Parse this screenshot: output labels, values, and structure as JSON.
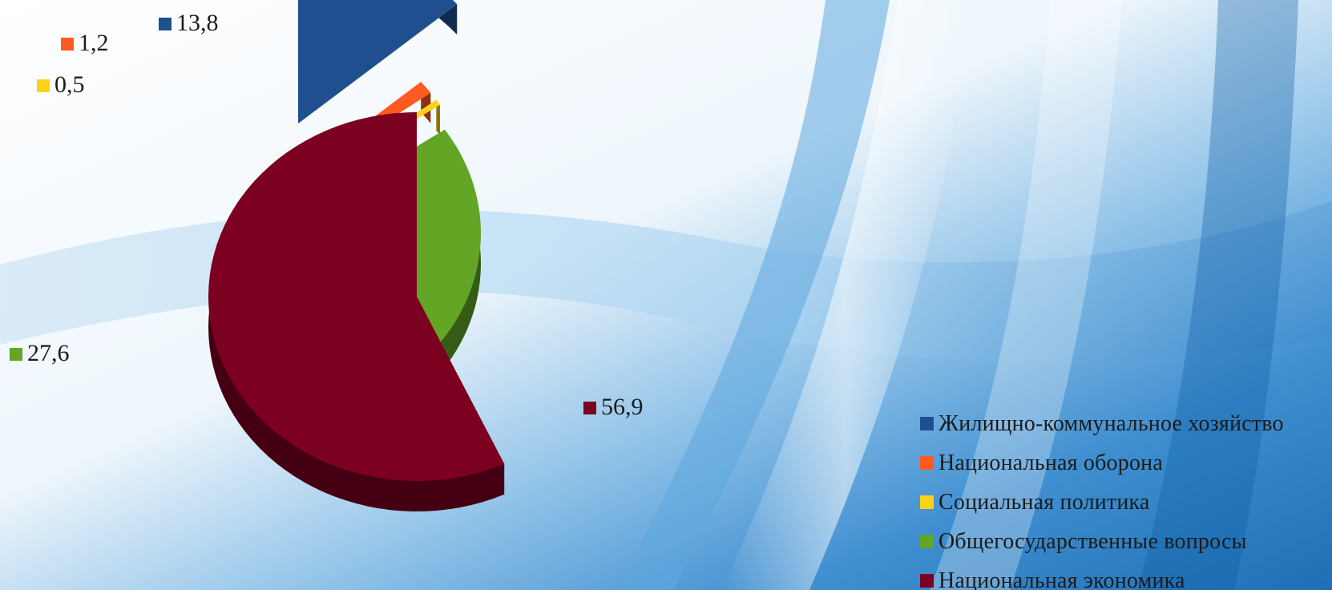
{
  "chart_data": {
    "type": "pie",
    "title": "",
    "decimal_separator": ",",
    "legend_position": "bottom-right",
    "series": [
      {
        "name": "",
        "values": [
          13.8,
          1.2,
          0.5,
          27.6,
          56.9
        ],
        "labels": [
          "13,8",
          "1,2",
          "0,5",
          "27,6",
          "56,9"
        ]
      }
    ],
    "categories": [
      "Жилищно-коммунальное хозяйство",
      "Национальная оборона",
      "Социальная политика",
      "Общегосударственные вопросы",
      "Национальная экономика"
    ],
    "colors": [
      "#1f4f8f",
      "#ff5a1f",
      "#ffd21a",
      "#63a524",
      "#7c0020"
    ],
    "style": "3d-exploded-pie"
  }
}
